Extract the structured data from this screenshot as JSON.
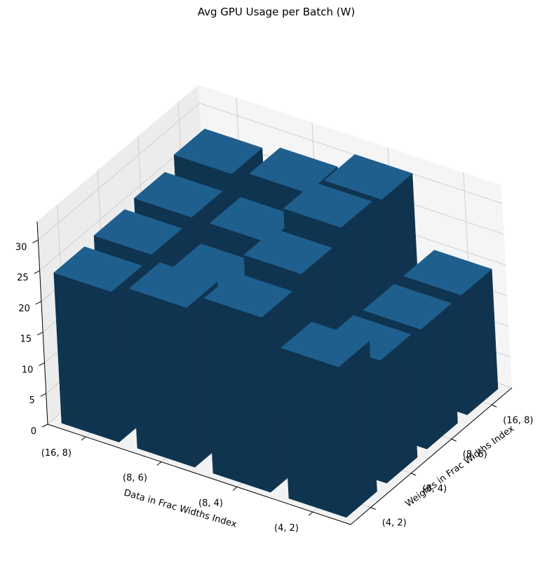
{
  "chart_data": {
    "type": "bar3d",
    "title": "Avg GPU Usage per Batch (W)",
    "xlabel": "Data in Frac Widths Index",
    "ylabel": "Weights in Frac Widths Index",
    "zlabel": "",
    "x_categories": [
      "(16, 8)",
      "(8, 6)",
      "(8, 4)",
      "(4, 2)"
    ],
    "y_categories": [
      "(4, 2)",
      "(8, 4)",
      "(8, 6)",
      "(16, 8)"
    ],
    "z_ticks": [
      "0",
      "5",
      "10",
      "15",
      "20",
      "25",
      "30"
    ],
    "zlim": [
      0,
      33
    ],
    "grid": true,
    "bar_color": "#1f5f8e",
    "bars": [
      {
        "x": "(16, 8)",
        "y": "(4, 2)",
        "value": 24.5
      },
      {
        "x": "(16, 8)",
        "y": "(8, 4)",
        "value": 25.0
      },
      {
        "x": "(16, 8)",
        "y": "(8, 6)",
        "value": 25.5
      },
      {
        "x": "(16, 8)",
        "y": "(16, 8)",
        "value": 27.0
      },
      {
        "x": "(8, 6)",
        "y": "(4, 2)",
        "value": 26.0
      },
      {
        "x": "(8, 6)",
        "y": "(8, 4)",
        "value": 23.5
      },
      {
        "x": "(8, 6)",
        "y": "(8, 6)",
        "value": 25.5
      },
      {
        "x": "(8, 6)",
        "y": "(16, 8)",
        "value": 28.0
      },
      {
        "x": "(8, 4)",
        "y": "(4, 2)",
        "value": 28.5
      },
      {
        "x": "(8, 4)",
        "y": "(8, 4)",
        "value": 30.0
      },
      {
        "x": "(8, 4)",
        "y": "(8, 6)",
        "value": 32.0
      },
      {
        "x": "(8, 4)",
        "y": "(16, 8)",
        "value": 31.0
      },
      {
        "x": "(4, 2)",
        "y": "(4, 2)",
        "value": 24.5
      },
      {
        "x": "(4, 2)",
        "y": "(8, 4)",
        "value": 20.0
      },
      {
        "x": "(4, 2)",
        "y": "(8, 6)",
        "value": 19.5
      },
      {
        "x": "(4, 2)",
        "y": "(16, 8)",
        "value": 19.5
      }
    ]
  }
}
